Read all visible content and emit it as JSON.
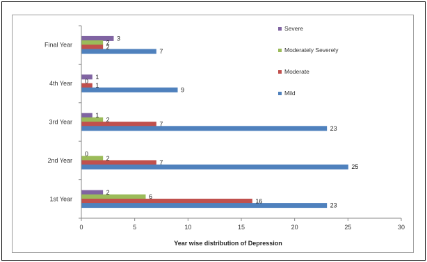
{
  "chart_data": {
    "type": "bar",
    "orientation": "horizontal",
    "categories": [
      "1st Year",
      "2nd Year",
      "3rd Year",
      "4th Year",
      "Final Year"
    ],
    "series": [
      {
        "name": "Mild",
        "color": "#4f81bd",
        "values": [
          23,
          25,
          23,
          9,
          7
        ]
      },
      {
        "name": "Moderate",
        "color": "#c0504d",
        "values": [
          16,
          7,
          7,
          1,
          2
        ]
      },
      {
        "name": "Moderately Severely",
        "color": "#9bbb59",
        "values": [
          6,
          2,
          2,
          0,
          2
        ]
      },
      {
        "name": "Severe",
        "color": "#8064a2",
        "values": [
          2,
          0,
          1,
          1,
          3
        ]
      }
    ],
    "xlabel": "Year wise distribution of Depression",
    "ylabel": "",
    "xlim": [
      0,
      30
    ],
    "xticks": [
      0,
      5,
      10,
      15,
      20,
      25,
      30
    ],
    "legend_order": [
      "Severe",
      "Moderately Severely",
      "Moderate",
      "Mild"
    ],
    "legend_position": "right",
    "grid": false
  }
}
